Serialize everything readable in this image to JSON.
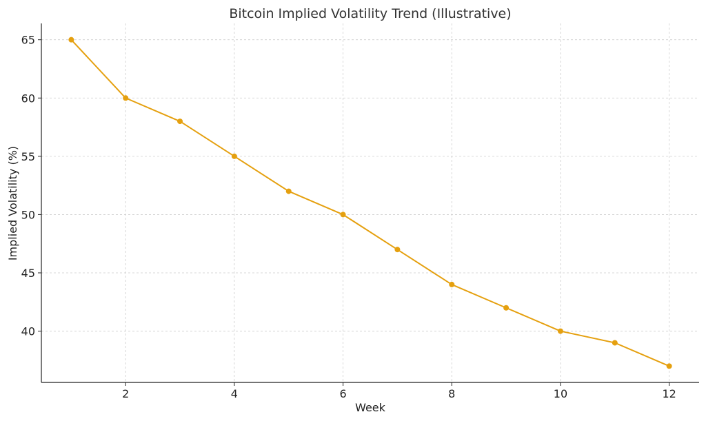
{
  "chart_data": {
    "type": "line",
    "title": "Bitcoin Implied Volatility Trend (Illustrative)",
    "xlabel": "Week",
    "ylabel": "Implied Volatility (%)",
    "x": [
      1,
      2,
      3,
      4,
      5,
      6,
      7,
      8,
      9,
      10,
      11,
      12
    ],
    "series": [
      {
        "values": [
          65,
          60,
          58,
          55,
          52,
          50,
          47,
          44,
          42,
          40,
          39,
          37
        ],
        "color": "#E5A00F"
      }
    ],
    "xlim": [
      0.45,
      12.55
    ],
    "ylim": [
      35.6,
      66.4
    ],
    "xticks": [
      2,
      4,
      6,
      8,
      10,
      12
    ],
    "yticks": [
      40,
      45,
      50,
      55,
      60,
      65
    ],
    "grid": true,
    "marker": "circle"
  }
}
